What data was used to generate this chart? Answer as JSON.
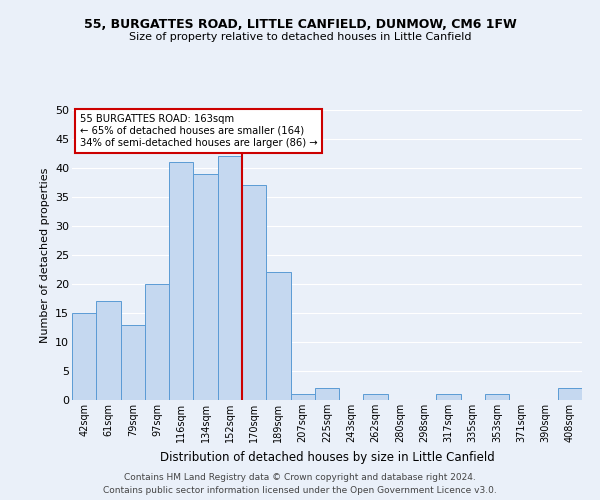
{
  "title1": "55, BURGATTES ROAD, LITTLE CANFIELD, DUNMOW, CM6 1FW",
  "title2": "Size of property relative to detached houses in Little Canfield",
  "xlabel": "Distribution of detached houses by size in Little Canfield",
  "ylabel": "Number of detached properties",
  "categories": [
    "42sqm",
    "61sqm",
    "79sqm",
    "97sqm",
    "116sqm",
    "134sqm",
    "152sqm",
    "170sqm",
    "189sqm",
    "207sqm",
    "225sqm",
    "243sqm",
    "262sqm",
    "280sqm",
    "298sqm",
    "317sqm",
    "335sqm",
    "353sqm",
    "371sqm",
    "390sqm",
    "408sqm"
  ],
  "values": [
    15,
    17,
    13,
    20,
    41,
    39,
    42,
    37,
    22,
    1,
    2,
    0,
    1,
    0,
    0,
    1,
    0,
    1,
    0,
    0,
    2
  ],
  "bar_color": "#c5d8f0",
  "bar_edge_color": "#5b9bd5",
  "property_label": "55 BURGATTES ROAD: 163sqm",
  "annotation_line1": "← 65% of detached houses are smaller (164)",
  "annotation_line2": "34% of semi-detached houses are larger (86) →",
  "vline_color": "#cc0000",
  "vline_position": 6.5,
  "annotation_box_color": "#ffffff",
  "annotation_box_edge": "#cc0000",
  "background_color": "#eaf0f9",
  "grid_color": "#ffffff",
  "fig_background": "#eaf0f9",
  "ylim": [
    0,
    50
  ],
  "yticks": [
    0,
    5,
    10,
    15,
    20,
    25,
    30,
    35,
    40,
    45,
    50
  ],
  "footer1": "Contains HM Land Registry data © Crown copyright and database right 2024.",
  "footer2": "Contains public sector information licensed under the Open Government Licence v3.0."
}
